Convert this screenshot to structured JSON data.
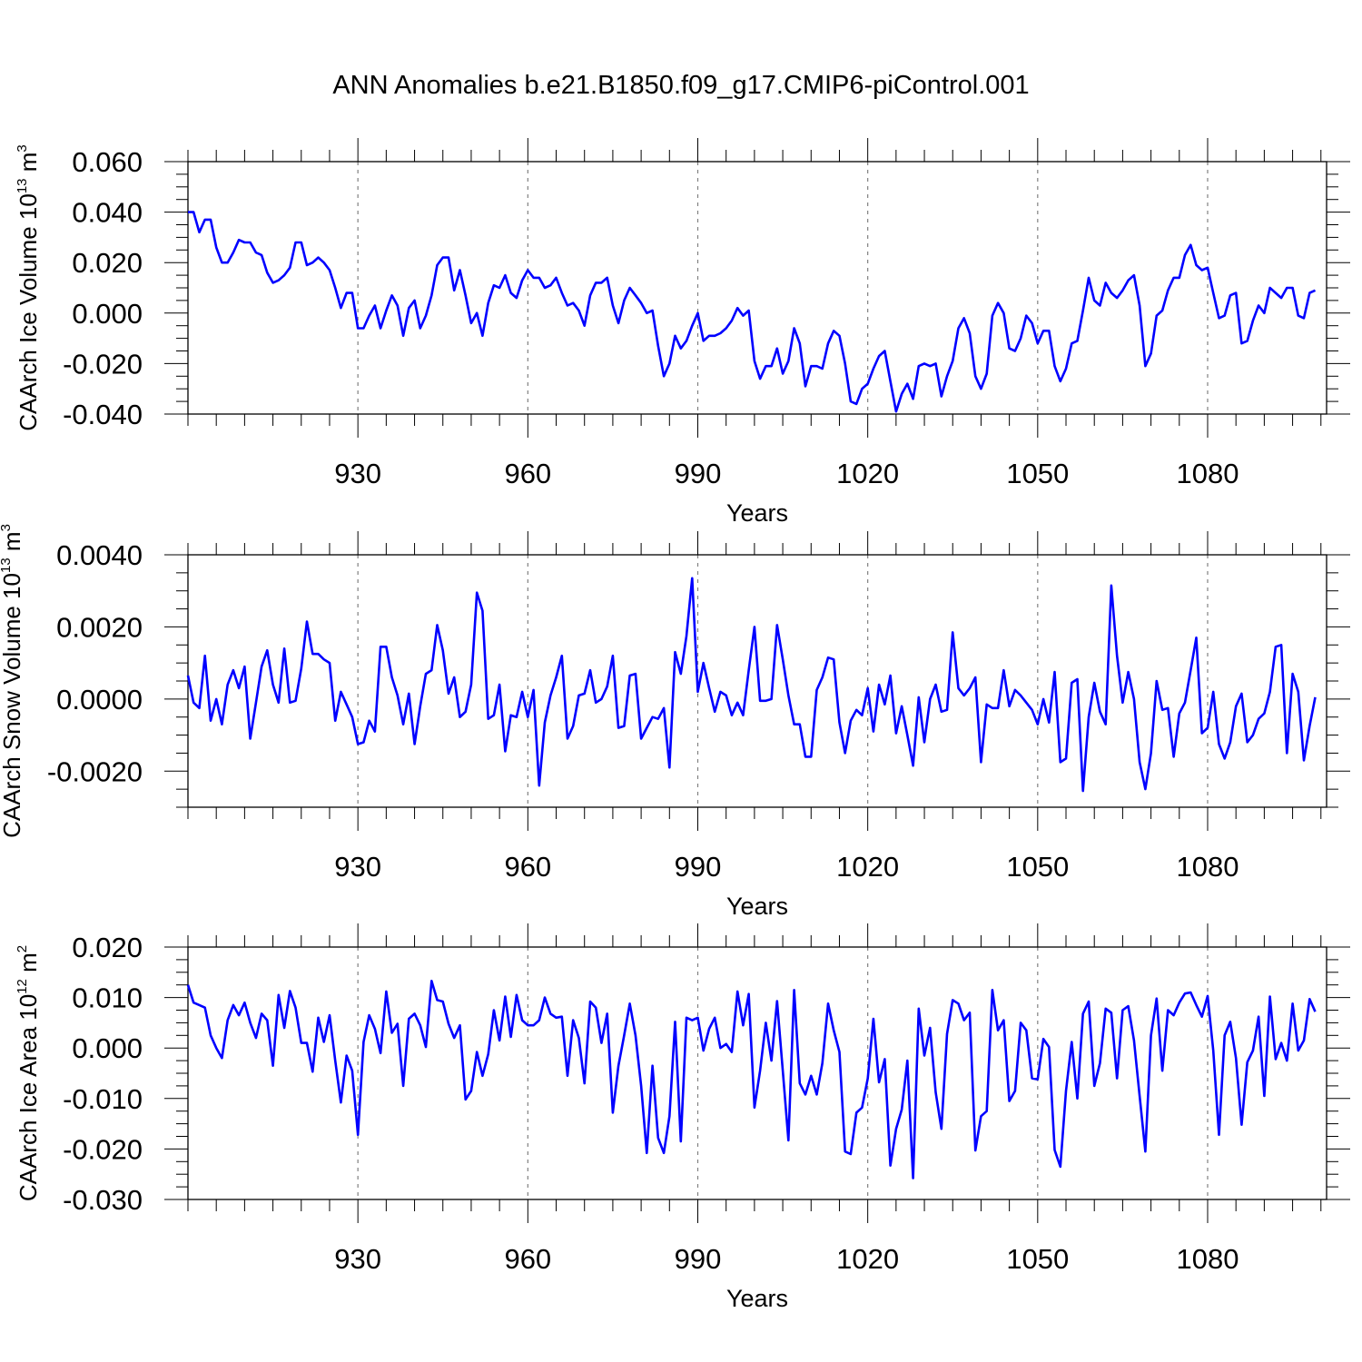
{
  "title": "ANN Anomalies b.e21.B1850.f09_g17.CMIP6-piControl.001",
  "colors": {
    "series": "#0000ff",
    "axis": "#000000",
    "grid": "#808080"
  },
  "chart_data": [
    {
      "type": "line",
      "ylabel_main": "CAArch Ice Volume 10",
      "ylabel_exp": "13",
      "ylabel_unit": "m",
      "ylabel_unit_exp": "3",
      "xlabel": "Years",
      "xlim": [
        900,
        1101
      ],
      "ylim": [
        -0.04,
        0.06
      ],
      "grid": "vertical dashed at major x ticks",
      "x_start": 900,
      "x_ticks": [
        930,
        960,
        990,
        1020,
        1050,
        1080
      ],
      "x_tick_labels": [
        "930",
        "960",
        "990",
        "1020",
        "1050",
        "1080"
      ],
      "y_ticks": [
        -0.04,
        -0.02,
        0.0,
        0.02,
        0.04,
        0.06
      ],
      "y_tick_labels": [
        "-0.040",
        "-0.020",
        "0.000",
        "0.020",
        "0.040",
        "0.060"
      ],
      "y_minor_step": 0.005,
      "values": [
        0.04,
        0.04,
        0.032,
        0.037,
        0.037,
        0.026,
        0.02,
        0.02,
        0.024,
        0.029,
        0.028,
        0.028,
        0.024,
        0.023,
        0.016,
        0.012,
        0.013,
        0.015,
        0.018,
        0.028,
        0.028,
        0.019,
        0.02,
        0.022,
        0.02,
        0.017,
        0.01,
        0.002,
        0.008,
        0.008,
        -0.006,
        -0.006,
        -0.001,
        0.003,
        -0.006,
        0.001,
        0.007,
        0.003,
        -0.009,
        0.002,
        0.005,
        -0.006,
        -0.001,
        0.007,
        0.019,
        0.022,
        0.022,
        0.009,
        0.017,
        0.007,
        -0.004,
        0.0,
        -0.009,
        0.004,
        0.011,
        0.01,
        0.015,
        0.008,
        0.006,
        0.013,
        0.017,
        0.014,
        0.014,
        0.01,
        0.011,
        0.014,
        0.008,
        0.003,
        0.004,
        0.001,
        -0.005,
        0.007,
        0.012,
        0.012,
        0.014,
        0.003,
        -0.004,
        0.005,
        0.01,
        0.007,
        0.004,
        0.0,
        0.001,
        -0.013,
        -0.025,
        -0.02,
        -0.009,
        -0.014,
        -0.011,
        -0.005,
        0.0,
        -0.011,
        -0.009,
        -0.009,
        -0.008,
        -0.006,
        -0.003,
        0.002,
        -0.001,
        0.001,
        -0.019,
        -0.026,
        -0.021,
        -0.021,
        -0.014,
        -0.024,
        -0.019,
        -0.006,
        -0.012,
        -0.029,
        -0.021,
        -0.021,
        -0.022,
        -0.012,
        -0.007,
        -0.009,
        -0.02,
        -0.035,
        -0.036,
        -0.03,
        -0.028,
        -0.022,
        -0.017,
        -0.015,
        -0.027,
        -0.039,
        -0.032,
        -0.028,
        -0.034,
        -0.021,
        -0.02,
        -0.021,
        -0.02,
        -0.033,
        -0.025,
        -0.019,
        -0.006,
        -0.002,
        -0.008,
        -0.025,
        -0.03,
        -0.024,
        -0.001,
        0.004,
        0.0,
        -0.014,
        -0.015,
        -0.01,
        -0.001,
        -0.004,
        -0.012,
        -0.007,
        -0.007,
        -0.021,
        -0.027,
        -0.022,
        -0.012,
        -0.011,
        0.001,
        0.014,
        0.005,
        0.003,
        0.012,
        0.008,
        0.006,
        0.009,
        0.013,
        0.015,
        0.003,
        -0.021,
        -0.016,
        -0.001,
        0.001,
        0.009,
        0.014,
        0.014,
        0.023,
        0.027,
        0.019,
        0.017,
        0.018,
        0.008,
        -0.002,
        -0.001,
        0.007,
        0.008,
        -0.012,
        -0.011,
        -0.003,
        0.003,
        0.0,
        0.01,
        0.008,
        0.006,
        0.01,
        0.01,
        -0.001,
        -0.002,
        0.008,
        0.009
      ]
    },
    {
      "type": "line",
      "ylabel_main": "CAArch Snow Volume 10",
      "ylabel_exp": "13",
      "ylabel_unit": "m",
      "ylabel_unit_exp": "3",
      "xlabel": "Years",
      "xlim": [
        900,
        1101
      ],
      "ylim": [
        -0.003,
        0.004
      ],
      "grid": "vertical dashed at major x ticks",
      "x_start": 900,
      "x_ticks": [
        930,
        960,
        990,
        1020,
        1050,
        1080
      ],
      "x_tick_labels": [
        "930",
        "960",
        "990",
        "1020",
        "1050",
        "1080"
      ],
      "y_ticks": [
        -0.002,
        0.0,
        0.002,
        0.004
      ],
      "y_tick_labels": [
        "-0.0020",
        "0.0000",
        "0.0020",
        "0.0040"
      ],
      "y_minor_step": 0.0005,
      "values": [
        0.00065,
        -0.0001,
        -0.00025,
        0.0012,
        -0.0006,
        0.0,
        -0.0007,
        0.0004,
        0.0008,
        0.0003,
        0.0009,
        -0.0011,
        -0.0001,
        0.0009,
        0.00135,
        0.0004,
        -0.0001,
        0.0014,
        -0.0001,
        -5e-05,
        0.00085,
        0.00215,
        0.00125,
        0.00125,
        0.0011,
        0.001,
        -0.0006,
        0.0002,
        -0.00015,
        -0.0005,
        -0.00125,
        -0.0012,
        -0.0006,
        -0.0009,
        0.00145,
        0.00145,
        0.0006,
        0.0001,
        -0.0007,
        0.00015,
        -0.00125,
        -0.0002,
        0.0007,
        0.0008,
        0.00205,
        0.00135,
        0.00015,
        0.0006,
        -0.0005,
        -0.00035,
        0.0004,
        0.00295,
        0.00245,
        -0.00055,
        -0.00045,
        0.0004,
        -0.00145,
        -0.00045,
        -0.0005,
        0.0002,
        -0.0005,
        0.00025,
        -0.0024,
        -0.00065,
        0.0001,
        0.0006,
        0.0012,
        -0.0011,
        -0.00075,
        0.0001,
        0.00015,
        0.0008,
        -0.0001,
        0.0,
        0.00035,
        0.0012,
        -0.0008,
        -0.00075,
        0.00065,
        0.0007,
        -0.0011,
        -0.0008,
        -0.0005,
        -0.00055,
        -0.00025,
        -0.0019,
        0.0013,
        0.0007,
        0.00175,
        0.00335,
        0.0002,
        0.001,
        0.0003,
        -0.00035,
        0.0002,
        0.0001,
        -0.00045,
        -0.0001,
        -0.00045,
        0.0008,
        0.002,
        -5e-05,
        -5e-05,
        0.0,
        0.00205,
        0.0011,
        0.0001,
        -0.0007,
        -0.0007,
        -0.0016,
        -0.0016,
        0.00025,
        0.0006,
        0.00115,
        0.0011,
        -0.00065,
        -0.0015,
        -0.0006,
        -0.0003,
        -0.00045,
        0.0003,
        -0.0009,
        0.0004,
        -0.00015,
        0.00065,
        -0.00095,
        -0.0002,
        -0.001,
        -0.00185,
        5e-05,
        -0.0012,
        0.0,
        0.0004,
        -0.00035,
        -0.0003,
        0.00185,
        0.0003,
        0.0001,
        0.0003,
        0.0006,
        -0.00175,
        -0.00015,
        -0.00025,
        -0.00025,
        0.0008,
        -0.0002,
        0.00025,
        0.0001,
        -0.0001,
        -0.0003,
        -0.0007,
        0.0,
        -0.00065,
        0.00075,
        -0.00175,
        -0.00165,
        0.00045,
        0.00055,
        -0.00255,
        -0.0005,
        0.00045,
        -0.00035,
        -0.0007,
        0.00315,
        0.0012,
        -0.0001,
        0.00075,
        0.0,
        -0.00175,
        -0.0025,
        -0.0015,
        0.0005,
        -0.0003,
        -0.00025,
        -0.0016,
        -0.0004,
        -0.0001,
        0.0008,
        0.0017,
        -0.00095,
        -0.0008,
        0.0002,
        -0.00125,
        -0.00165,
        -0.0012,
        -0.0002,
        0.00015,
        -0.0012,
        -0.001,
        -0.00055,
        -0.0004,
        0.0002,
        0.00145,
        0.0015,
        -0.0015,
        0.0007,
        0.0002,
        -0.0017,
        -0.00075,
        5e-05
      ]
    },
    {
      "type": "line",
      "ylabel_main": "CAArch Ice Area 10",
      "ylabel_exp": "12",
      "ylabel_unit": "m",
      "ylabel_unit_exp": "2",
      "xlabel": "Years",
      "xlim": [
        900,
        1101
      ],
      "ylim": [
        -0.03,
        0.02
      ],
      "grid": "vertical dashed at major x ticks",
      "x_start": 900,
      "x_ticks": [
        930,
        960,
        990,
        1020,
        1050,
        1080
      ],
      "x_tick_labels": [
        "930",
        "960",
        "990",
        "1020",
        "1050",
        "1080"
      ],
      "y_ticks": [
        -0.03,
        -0.02,
        -0.01,
        0.0,
        0.01,
        0.02
      ],
      "y_tick_labels": [
        "-0.030",
        "-0.020",
        "-0.010",
        "0.000",
        "0.010",
        "0.020"
      ],
      "y_minor_step": 0.0025,
      "values": [
        0.0125,
        0.009,
        0.0085,
        0.008,
        0.0025,
        0.0,
        -0.002,
        0.0055,
        0.0085,
        0.0065,
        0.009,
        0.005,
        0.002,
        0.0068,
        0.0055,
        -0.0035,
        0.0105,
        0.004,
        0.0113,
        0.008,
        0.001,
        0.001,
        -0.0047,
        0.006,
        0.0012,
        0.0065,
        -0.0025,
        -0.0108,
        -0.0015,
        -0.0045,
        -0.0172,
        0.0012,
        0.0065,
        0.0038,
        -0.001,
        0.0112,
        0.003,
        0.0048,
        -0.0075,
        0.0058,
        0.0068,
        0.0045,
        0.0002,
        0.0133,
        0.0095,
        0.0092,
        0.0048,
        0.002,
        0.0045,
        -0.0102,
        -0.0085,
        -0.0008,
        -0.0055,
        -0.0012,
        0.0075,
        0.0015,
        0.0102,
        0.0022,
        0.0105,
        0.0055,
        0.0045,
        0.0045,
        0.0055,
        0.01,
        0.0068,
        0.006,
        0.0062,
        -0.0055,
        0.0055,
        0.002,
        -0.007,
        0.0092,
        0.008,
        0.001,
        0.0068,
        -0.0128,
        -0.0035,
        0.0025,
        0.0088,
        0.0025,
        -0.0075,
        -0.0208,
        -0.0035,
        -0.0178,
        -0.0208,
        -0.0135,
        0.0052,
        -0.0185,
        0.006,
        0.0055,
        0.006,
        -0.0005,
        0.0038,
        0.006,
        0.0,
        0.0008,
        -0.0008,
        0.0112,
        0.0045,
        0.0107,
        -0.0118,
        -0.0045,
        0.005,
        -0.0025,
        0.0093,
        -0.0045,
        -0.0183,
        0.0115,
        -0.007,
        -0.0092,
        -0.0055,
        -0.0092,
        -0.003,
        0.0088,
        0.0035,
        -0.0008,
        -0.0205,
        -0.021,
        -0.0128,
        -0.0118,
        -0.006,
        0.0058,
        -0.0068,
        -0.0022,
        -0.0233,
        -0.016,
        -0.0122,
        -0.0025,
        -0.0258,
        0.0078,
        -0.0015,
        0.004,
        -0.0088,
        -0.016,
        0.0028,
        0.0095,
        0.0088,
        0.0055,
        0.007,
        -0.0203,
        -0.0135,
        -0.0125,
        0.0115,
        0.0035,
        0.0055,
        -0.0105,
        -0.0085,
        0.005,
        0.0035,
        -0.006,
        -0.0062,
        0.0018,
        0.0002,
        -0.0202,
        -0.0235,
        -0.0085,
        0.0012,
        -0.01,
        0.0068,
        0.0092,
        -0.0075,
        -0.003,
        0.0078,
        0.007,
        -0.006,
        0.0075,
        0.0083,
        0.0015,
        -0.0095,
        -0.0205,
        0.0025,
        0.0098,
        -0.0045,
        0.0075,
        0.0065,
        0.009,
        0.0108,
        0.011,
        0.0085,
        0.0062,
        0.0103,
        -0.0005,
        -0.0172,
        0.0025,
        0.0052,
        -0.002,
        -0.0152,
        -0.0028,
        -0.0005,
        0.0062,
        -0.0095,
        0.0102,
        -0.0022,
        0.001,
        -0.0025,
        0.0088,
        -0.0005,
        0.0015,
        0.0097,
        0.0072
      ]
    }
  ]
}
